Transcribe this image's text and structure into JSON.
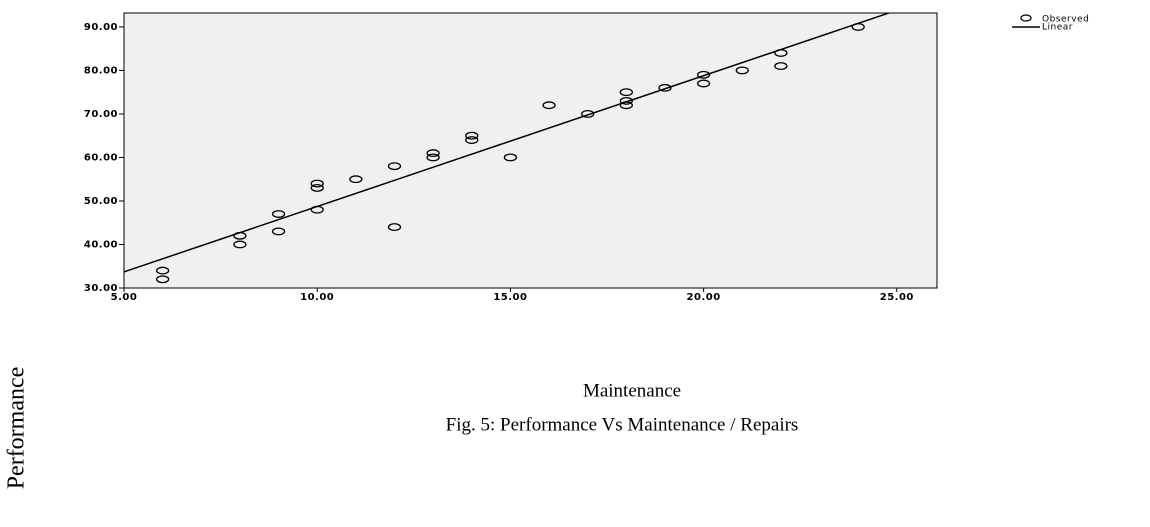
{
  "chart_data": {
    "type": "scatter",
    "x_label": "Maintenance",
    "y_label": "Performance",
    "caption": "Fig. 5: Performance Vs Maintenance / Repairs",
    "x": [
      6,
      6,
      8,
      8,
      9,
      9,
      10,
      10,
      10,
      11,
      12,
      12,
      13,
      13,
      14,
      14,
      15,
      16,
      17,
      18,
      18,
      18,
      19,
      20,
      20,
      21,
      22,
      22,
      24
    ],
    "series": [
      {
        "name": "Observed",
        "color": "#000000",
        "values": [
          34,
          32,
          42,
          40,
          47,
          43,
          54,
          53,
          48,
          55,
          58,
          44,
          61,
          60,
          65,
          64,
          60,
          72,
          70,
          75,
          73,
          72,
          76,
          79,
          77,
          80,
          84,
          81,
          90
        ]
      }
    ],
    "trendline": {
      "name": "Linear",
      "kind": "linear",
      "color": "#000000"
    },
    "xlim": [
      5,
      26.04
    ],
    "ylim": [
      30,
      93.2
    ],
    "xticks": [
      {
        "value": 5,
        "label": "5.00"
      },
      {
        "value": 10,
        "label": "10.00"
      },
      {
        "value": 15,
        "label": "15.00"
      },
      {
        "value": 20,
        "label": "20.00"
      },
      {
        "value": 25,
        "label": "25.00"
      }
    ],
    "yticks": [
      {
        "value": 30,
        "label": "30.00"
      },
      {
        "value": 40,
        "label": "40.00"
      },
      {
        "value": 50,
        "label": "50.00"
      },
      {
        "value": 60,
        "label": "60.00"
      },
      {
        "value": 70,
        "label": "70.00"
      },
      {
        "value": 80,
        "label": "80.00"
      },
      {
        "value": 90,
        "label": "90.00"
      }
    ],
    "legend": "top-right",
    "background": "#f0f0f0"
  }
}
